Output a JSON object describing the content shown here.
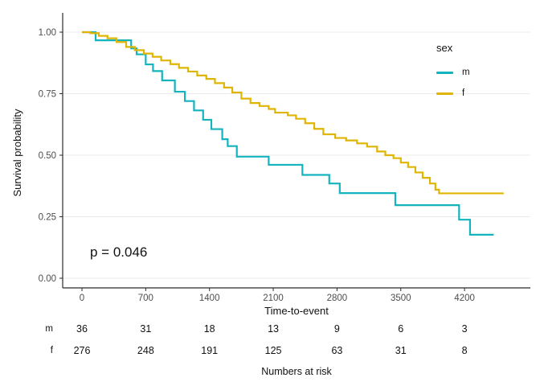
{
  "chart_data": {
    "type": "line",
    "subtype": "kaplan-meier-step",
    "title": "",
    "xlabel": "Time-to-event",
    "ylabel": "Survival probability",
    "xlim": [
      0,
      4700
    ],
    "ylim": [
      0,
      1
    ],
    "x_ticks": [
      0,
      700,
      1400,
      2100,
      2800,
      3500,
      4200
    ],
    "y_ticks": [
      {
        "value": 0.0,
        "label": "0.00"
      },
      {
        "value": 0.25,
        "label": "0.25"
      },
      {
        "value": 0.5,
        "label": "0.50"
      },
      {
        "value": 0.75,
        "label": "0.75"
      },
      {
        "value": 1.0,
        "label": "1.00"
      }
    ],
    "grid": "horizontal-only",
    "annotation": {
      "text": "p = 0.046"
    },
    "legend": {
      "title": "sex",
      "position": "top-right"
    },
    "colors": {
      "m": "#14b4be",
      "f": "#e0b502",
      "grid": "#ebebeb",
      "spine": "#2b2b2b",
      "tick_label": "#4d4d4d"
    },
    "series": [
      {
        "name": "m",
        "color": "#14b4be",
        "steps": [
          [
            0,
            1.0
          ],
          [
            150,
            0.967
          ],
          [
            540,
            0.934
          ],
          [
            600,
            0.91
          ],
          [
            700,
            0.869
          ],
          [
            780,
            0.842
          ],
          [
            880,
            0.804
          ],
          [
            1020,
            0.758
          ],
          [
            1130,
            0.72
          ],
          [
            1230,
            0.682
          ],
          [
            1330,
            0.644
          ],
          [
            1420,
            0.606
          ],
          [
            1540,
            0.565
          ],
          [
            1600,
            0.537
          ],
          [
            1700,
            0.494
          ],
          [
            2050,
            0.461
          ],
          [
            2420,
            0.42
          ],
          [
            2715,
            0.385
          ],
          [
            2830,
            0.346
          ],
          [
            3440,
            0.297
          ],
          [
            4140,
            0.238
          ],
          [
            4260,
            0.177
          ],
          [
            4520,
            0.177
          ]
        ]
      },
      {
        "name": "f",
        "color": "#e0b502",
        "steps": [
          [
            0,
            1.0
          ],
          [
            90,
            0.996
          ],
          [
            185,
            0.985
          ],
          [
            280,
            0.975
          ],
          [
            380,
            0.96
          ],
          [
            485,
            0.94
          ],
          [
            580,
            0.927
          ],
          [
            680,
            0.913
          ],
          [
            775,
            0.9
          ],
          [
            870,
            0.885
          ],
          [
            970,
            0.87
          ],
          [
            1065,
            0.855
          ],
          [
            1165,
            0.84
          ],
          [
            1265,
            0.824
          ],
          [
            1365,
            0.81
          ],
          [
            1460,
            0.793
          ],
          [
            1560,
            0.775
          ],
          [
            1650,
            0.755
          ],
          [
            1750,
            0.73
          ],
          [
            1850,
            0.712
          ],
          [
            1950,
            0.7
          ],
          [
            2050,
            0.688
          ],
          [
            2120,
            0.673
          ],
          [
            2260,
            0.662
          ],
          [
            2350,
            0.648
          ],
          [
            2450,
            0.63
          ],
          [
            2550,
            0.607
          ],
          [
            2650,
            0.585
          ],
          [
            2780,
            0.57
          ],
          [
            2900,
            0.56
          ],
          [
            3020,
            0.548
          ],
          [
            3130,
            0.535
          ],
          [
            3240,
            0.515
          ],
          [
            3330,
            0.5
          ],
          [
            3420,
            0.488
          ],
          [
            3500,
            0.47
          ],
          [
            3580,
            0.452
          ],
          [
            3660,
            0.43
          ],
          [
            3740,
            0.408
          ],
          [
            3820,
            0.385
          ],
          [
            3880,
            0.36
          ],
          [
            3920,
            0.345
          ],
          [
            4630,
            0.345
          ]
        ]
      }
    ],
    "risk_table": {
      "caption": "Numbers at risk",
      "time_points": [
        0,
        700,
        1400,
        2100,
        2800,
        3500,
        4200
      ],
      "rows": [
        {
          "label": "m",
          "counts": [
            36,
            31,
            18,
            13,
            9,
            6,
            3
          ]
        },
        {
          "label": "f",
          "counts": [
            276,
            248,
            191,
            125,
            63,
            31,
            8
          ]
        }
      ]
    }
  }
}
